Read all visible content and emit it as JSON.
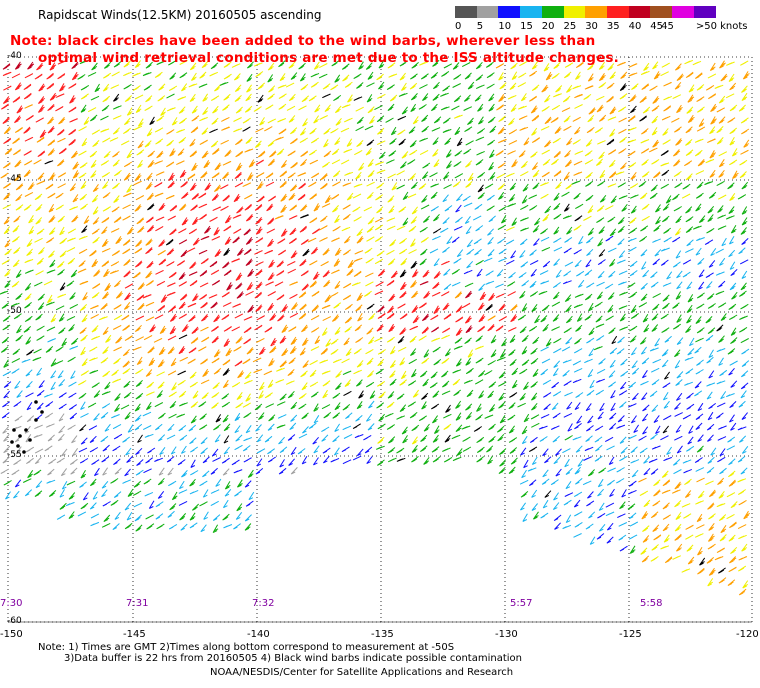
{
  "title": "Rapidscat Winds(12.5KM) 20160505 ascending",
  "note_line1": "Note: black circles have been added to the wind barbs, wherever less than",
  "note_line2": "optimal wind retrieval conditions are met due to the ISS altitude changes.",
  "legend": {
    "swatches": [
      {
        "label": "0",
        "color": "#555555"
      },
      {
        "label": "5",
        "color": "#a0a0a0"
      },
      {
        "label": "10",
        "color": "#1010ff"
      },
      {
        "label": "15",
        "color": "#19b4f0"
      },
      {
        "label": "20",
        "color": "#10b010"
      },
      {
        "label": "25",
        "color": "#f0f000"
      },
      {
        "label": "30",
        "color": "#ffa000"
      },
      {
        "label": "35",
        "color": "#ff2020"
      },
      {
        "label": "40",
        "color": "#c00020"
      },
      {
        "label": "45",
        "color": "#a05020"
      },
      {
        "label": "",
        "color": "#e000e0"
      },
      {
        "label": "",
        "color": "#6000c0"
      }
    ],
    "label_45": "45",
    "label_max": ">50 knots"
  },
  "lat_labels": [
    "-40",
    "-45",
    "-50",
    "-55",
    "-60"
  ],
  "lon_labels": [
    "-150",
    "-145",
    "-140",
    "-135",
    "-130",
    "-125",
    "-120"
  ],
  "time_labels": [
    "7:30",
    "7:31",
    "7:32",
    "5:57",
    "5:58"
  ],
  "footnote_line1": "Note: 1) Times are GMT 2)Times along bottom correspond to measurement at -50S",
  "footnote_line2": "3)Data buffer is 22 hrs from 20160505 4) Black wind barbs indicate possible contamination",
  "footnote_line3": "NOAA/NESDIS/Center for Satellite Applications and Research"
}
